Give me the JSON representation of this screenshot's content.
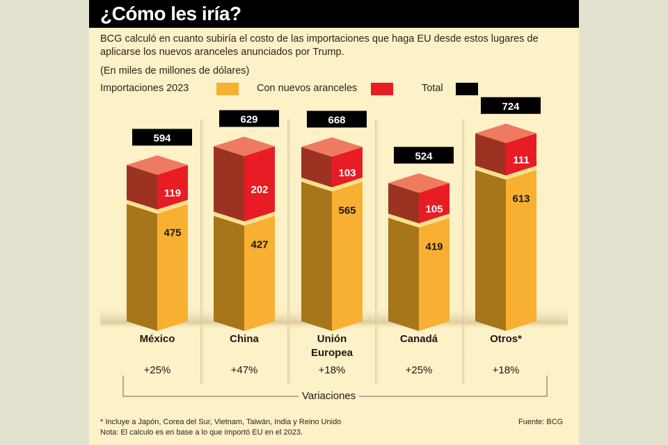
{
  "title": "¿Cómo les iría?",
  "intro": "BCG calculó en cuanto subiría el costo de las importaciones que haga EU desde estos lugares de aplicarse los nuevos aranceles anunciados por Trump.",
  "units": "(En miles de millones de dólares)",
  "legend": [
    {
      "label": "Importaciones 2023",
      "color": "#f7b031"
    },
    {
      "label": "Con nuevos aranceles",
      "color": "#e81c24"
    },
    {
      "label": "Total",
      "color": "#000000"
    }
  ],
  "colors": {
    "imports_front": "#f7b031",
    "imports_side": "#a8761a",
    "tariff_front": "#e81c24",
    "tariff_side": "#9c3322",
    "tariff_top": "#ee7a60",
    "separator": "#fde28a",
    "total_box": "#000000"
  },
  "chart_data": {
    "type": "bar",
    "stacked": true,
    "title": "¿Cómo les iría?",
    "ylabel": "Miles de millones de dólares",
    "categories": [
      "México",
      "China",
      "Unión Europea",
      "Canadá",
      "Otros*"
    ],
    "category_lines": [
      [
        "México"
      ],
      [
        "China"
      ],
      [
        "Unión",
        "Europea"
      ],
      [
        "Canadá"
      ],
      [
        "Otros*"
      ]
    ],
    "series": [
      {
        "name": "Importaciones 2023",
        "values": [
          475,
          427,
          565,
          419,
          613
        ]
      },
      {
        "name": "Con nuevos aranceles",
        "values": [
          119,
          202,
          103,
          105,
          111
        ]
      }
    ],
    "totals": [
      594,
      629,
      668,
      524,
      724
    ],
    "variations": [
      "+25%",
      "+47%",
      "+18%",
      "+25%",
      "+18%"
    ],
    "variations_label": "Variaciones"
  },
  "footnotes": {
    "asterisk": "* Incluye a Japón, Corea del Sur, Vietnam, Taiwán, India y Reino Unido",
    "note": "Nota: El calculo es en base a lo que importó EU en el 2023.",
    "source": "Fuente: BCG"
  }
}
